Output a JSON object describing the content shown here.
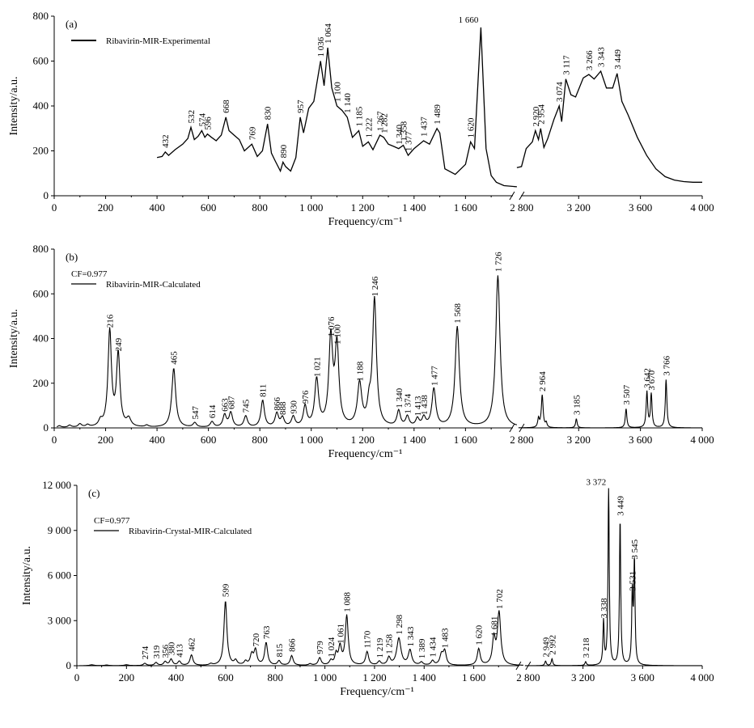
{
  "chart_data": [
    {
      "type": "line",
      "panel": "(a)",
      "legend": [
        "Ribavirin-MIR-Experimental"
      ],
      "legend_position": "top-left",
      "xlabel": "Frequency/cm⁻¹",
      "ylabel": "Intensity/a.u.",
      "ylim": [
        0,
        800
      ],
      "yticks": [
        "0",
        "200",
        "400",
        "600",
        "800"
      ],
      "xticks_left": [
        "0",
        "200",
        "400",
        "600",
        "800",
        "1 000",
        "1 200",
        "1 400",
        "1 600"
      ],
      "break_label": "2 800",
      "xticks_right": [
        "3 200",
        "3 600",
        "4 000"
      ],
      "x_axis_segments": [
        [
          0,
          1800
        ],
        [
          2800,
          4000
        ]
      ],
      "grid": false,
      "series": [
        {
          "x": [
            400,
            420,
            432,
            445,
            470,
            500,
            520,
            532,
            545,
            560,
            574,
            586,
            596,
            610,
            630,
            650,
            668,
            680,
            700,
            720,
            740,
            769,
            790,
            810,
            830,
            845,
            860,
            880,
            890,
            900,
            920,
            940,
            957,
            970,
            990,
            1010,
            1036,
            1050,
            1064,
            1080,
            1100,
            1120,
            1140,
            1160,
            1185,
            1200,
            1222,
            1240,
            1267,
            1282,
            1300,
            1320,
            1340,
            1358,
            1377,
            1400,
            1437,
            1460,
            1489,
            1500,
            1520,
            1560,
            1600,
            1620,
            1635,
            1660,
            1680,
            1700,
            1720,
            1750,
            1800
          ],
          "y": [
            170,
            175,
            195,
            180,
            205,
            230,
            255,
            305,
            250,
            265,
            290,
            260,
            275,
            262,
            245,
            270,
            350,
            290,
            270,
            250,
            200,
            230,
            175,
            200,
            320,
            190,
            155,
            110,
            150,
            130,
            110,
            170,
            350,
            280,
            390,
            420,
            600,
            490,
            660,
            480,
            400,
            380,
            350,
            260,
            290,
            220,
            240,
            205,
            270,
            260,
            230,
            220,
            210,
            225,
            180,
            210,
            245,
            230,
            300,
            280,
            120,
            95,
            140,
            240,
            210,
            750,
            210,
            90,
            60,
            45,
            40
          ]
        },
        {
          "x": [
            2800,
            2830,
            2860,
            2900,
            2920,
            2940,
            2954,
            2975,
            3000,
            3040,
            3074,
            3090,
            3117,
            3150,
            3180,
            3230,
            3266,
            3300,
            3343,
            3380,
            3420,
            3449,
            3480,
            3520,
            3580,
            3640,
            3700,
            3760,
            3820,
            3880,
            3940,
            4000
          ],
          "y": [
            125,
            130,
            210,
            240,
            290,
            250,
            300,
            215,
            255,
            340,
            400,
            330,
            520,
            450,
            440,
            525,
            540,
            520,
            555,
            480,
            480,
            545,
            420,
            360,
            260,
            180,
            120,
            85,
            70,
            63,
            60,
            60
          ]
        }
      ],
      "annotations": [
        "432",
        "532",
        "574",
        "596",
        "668",
        "769",
        "830",
        "890",
        "957",
        "1 036",
        "1 064",
        "1 100",
        "1 140",
        "1 185",
        "1 222",
        "1 267",
        "1 282",
        "1 340",
        "1 358",
        "1 377",
        "1 437",
        "1 489",
        "1 620",
        "1 660",
        "2 920",
        "2 954",
        "3 074",
        "3 117",
        "3 266",
        "3 343",
        "3 449"
      ],
      "annotation_x": [
        432,
        532,
        574,
        596,
        668,
        769,
        830,
        890,
        957,
        1036,
        1064,
        1100,
        1140,
        1185,
        1222,
        1267,
        1282,
        1340,
        1358,
        1377,
        1437,
        1489,
        1620,
        1660,
        2920,
        2954,
        3074,
        3117,
        3266,
        3343,
        3449
      ],
      "annotation_y": [
        195,
        305,
        290,
        275,
        350,
        230,
        320,
        150,
        350,
        600,
        660,
        400,
        350,
        290,
        240,
        270,
        260,
        210,
        225,
        180,
        245,
        300,
        240,
        750,
        290,
        300,
        400,
        520,
        540,
        555,
        545
      ],
      "annotation_rotation": [
        -90,
        -90,
        -90,
        -90,
        -90,
        -90,
        -90,
        -90,
        -90,
        -90,
        -90,
        -90,
        -90,
        -90,
        -90,
        -90,
        -90,
        -90,
        -90,
        -90,
        -90,
        -90,
        -90,
        0,
        -90,
        -90,
        -90,
        -90,
        -90,
        -90,
        -90
      ]
    },
    {
      "type": "line",
      "panel": "(b)",
      "legend_note": "CF=0.977",
      "legend": [
        "Ribavirin-MIR-Calculated"
      ],
      "legend_position": "top-left",
      "xlabel": "Frequency/cm⁻¹",
      "ylabel": "Intensity/a.u.",
      "ylim": [
        0,
        800
      ],
      "yticks": [
        "0",
        "200",
        "400",
        "600",
        "800"
      ],
      "xticks_left": [
        "0",
        "200",
        "400",
        "600",
        "800",
        "1 000",
        "1 200",
        "1 400",
        "1 600"
      ],
      "break_label": "2 800",
      "xticks_right": [
        "3 200",
        "3 600",
        "4 000"
      ],
      "x_axis_segments": [
        [
          0,
          1800
        ],
        [
          2800,
          4000
        ]
      ],
      "grid": false,
      "peaks": [
        {
          "x": 20,
          "y": 8,
          "w": 8
        },
        {
          "x": 60,
          "y": 10,
          "w": 8
        },
        {
          "x": 100,
          "y": 15,
          "w": 8
        },
        {
          "x": 130,
          "y": 10,
          "w": 8
        },
        {
          "x": 180,
          "y": 25,
          "w": 8
        },
        {
          "x": 216,
          "y": 430,
          "w": 8
        },
        {
          "x": 249,
          "y": 325,
          "w": 8
        },
        {
          "x": 290,
          "y": 35,
          "w": 10
        },
        {
          "x": 360,
          "y": 8,
          "w": 8
        },
        {
          "x": 465,
          "y": 265,
          "w": 9
        },
        {
          "x": 547,
          "y": 20,
          "w": 8
        },
        {
          "x": 614,
          "y": 25,
          "w": 8
        },
        {
          "x": 663,
          "y": 55,
          "w": 8
        },
        {
          "x": 687,
          "y": 65,
          "w": 8
        },
        {
          "x": 745,
          "y": 50,
          "w": 8
        },
        {
          "x": 811,
          "y": 120,
          "w": 8
        },
        {
          "x": 866,
          "y": 60,
          "w": 8
        },
        {
          "x": 888,
          "y": 40,
          "w": 8
        },
        {
          "x": 930,
          "y": 45,
          "w": 8
        },
        {
          "x": 976,
          "y": 90,
          "w": 8
        },
        {
          "x": 1021,
          "y": 210,
          "w": 9
        },
        {
          "x": 1076,
          "y": 390,
          "w": 9
        },
        {
          "x": 1100,
          "y": 355,
          "w": 9
        },
        {
          "x": 1188,
          "y": 190,
          "w": 10
        },
        {
          "x": 1225,
          "y": 80,
          "w": 8
        },
        {
          "x": 1246,
          "y": 570,
          "w": 9
        },
        {
          "x": 1340,
          "y": 70,
          "w": 8
        },
        {
          "x": 1374,
          "y": 45,
          "w": 8
        },
        {
          "x": 1413,
          "y": 35,
          "w": 8
        },
        {
          "x": 1438,
          "y": 40,
          "w": 8
        },
        {
          "x": 1477,
          "y": 170,
          "w": 9
        },
        {
          "x": 1568,
          "y": 450,
          "w": 10
        },
        {
          "x": 1726,
          "y": 680,
          "w": 10
        },
        {
          "x": 2940,
          "y": 40,
          "w": 6
        },
        {
          "x": 2964,
          "y": 145,
          "w": 7
        },
        {
          "x": 2990,
          "y": 20,
          "w": 6
        },
        {
          "x": 3185,
          "y": 40,
          "w": 6
        },
        {
          "x": 3507,
          "y": 85,
          "w": 6
        },
        {
          "x": 3642,
          "y": 160,
          "w": 6
        },
        {
          "x": 3670,
          "y": 150,
          "w": 6
        },
        {
          "x": 3766,
          "y": 215,
          "w": 6
        }
      ],
      "annotations": [
        "216",
        "249",
        "465",
        "547",
        "614",
        "663",
        "687",
        "745",
        "811",
        "866",
        "888",
        "930",
        "976",
        "1 021",
        "1 076",
        "1 100",
        "1 188",
        "1 246",
        "1 340",
        "1 374",
        "1 413",
        "1 438",
        "1 477",
        "1 568",
        "1 726",
        "2 964",
        "3 185",
        "3 507",
        "3 642",
        "3 670",
        "3 766"
      ],
      "annotation_x": [
        216,
        249,
        465,
        547,
        614,
        663,
        687,
        745,
        811,
        866,
        888,
        930,
        976,
        1021,
        1076,
        1100,
        1188,
        1246,
        1340,
        1374,
        1413,
        1438,
        1477,
        1568,
        1726,
        2964,
        3185,
        3507,
        3642,
        3670,
        3766
      ],
      "annotation_y": [
        430,
        325,
        265,
        20,
        25,
        55,
        65,
        50,
        120,
        60,
        40,
        45,
        90,
        210,
        390,
        355,
        190,
        570,
        70,
        45,
        35,
        40,
        170,
        450,
        680,
        145,
        40,
        85,
        160,
        150,
        215
      ]
    },
    {
      "type": "line",
      "panel": "(c)",
      "legend_note": "CF=0.977",
      "legend": [
        "Ribavirin-Crystal-MIR-Calculated"
      ],
      "legend_position": "top-left",
      "xlabel": "Frequency/cm⁻¹",
      "ylabel": "Intensity/a.u.",
      "ylim": [
        0,
        12000
      ],
      "yticks": [
        "0",
        "3 000",
        "6 000",
        "9 000",
        "12 000"
      ],
      "xticks_left": [
        "0",
        "200",
        "400",
        "600",
        "800",
        "1 000",
        "1 200",
        "1 400",
        "1 600"
      ],
      "break_label": "2 800",
      "xticks_right": [
        "3 200",
        "3 600",
        "4 000"
      ],
      "x_axis_segments": [
        [
          0,
          1800
        ],
        [
          2800,
          4000
        ]
      ],
      "grid": false,
      "peaks": [
        {
          "x": 60,
          "y": 60,
          "w": 10
        },
        {
          "x": 120,
          "y": 40,
          "w": 10
        },
        {
          "x": 200,
          "y": 60,
          "w": 10
        },
        {
          "x": 274,
          "y": 150,
          "w": 7
        },
        {
          "x": 319,
          "y": 200,
          "w": 7
        },
        {
          "x": 356,
          "y": 250,
          "w": 7
        },
        {
          "x": 380,
          "y": 420,
          "w": 7
        },
        {
          "x": 413,
          "y": 280,
          "w": 7
        },
        {
          "x": 462,
          "y": 700,
          "w": 7
        },
        {
          "x": 540,
          "y": 100,
          "w": 7
        },
        {
          "x": 599,
          "y": 4300,
          "w": 7
        },
        {
          "x": 640,
          "y": 300,
          "w": 7
        },
        {
          "x": 680,
          "y": 250,
          "w": 7
        },
        {
          "x": 705,
          "y": 700,
          "w": 7
        },
        {
          "x": 720,
          "y": 1000,
          "w": 7
        },
        {
          "x": 763,
          "y": 1500,
          "w": 7
        },
        {
          "x": 815,
          "y": 300,
          "w": 7
        },
        {
          "x": 866,
          "y": 650,
          "w": 7
        },
        {
          "x": 940,
          "y": 100,
          "w": 7
        },
        {
          "x": 979,
          "y": 500,
          "w": 7
        },
        {
          "x": 1024,
          "y": 300,
          "w": 7
        },
        {
          "x": 1045,
          "y": 700,
          "w": 6
        },
        {
          "x": 1061,
          "y": 1200,
          "w": 7
        },
        {
          "x": 1088,
          "y": 3300,
          "w": 7
        },
        {
          "x": 1170,
          "y": 900,
          "w": 7
        },
        {
          "x": 1219,
          "y": 250,
          "w": 7
        },
        {
          "x": 1258,
          "y": 500,
          "w": 7
        },
        {
          "x": 1298,
          "y": 1800,
          "w": 10
        },
        {
          "x": 1343,
          "y": 1000,
          "w": 8
        },
        {
          "x": 1389,
          "y": 200,
          "w": 7
        },
        {
          "x": 1434,
          "y": 300,
          "w": 7
        },
        {
          "x": 1470,
          "y": 700,
          "w": 8
        },
        {
          "x": 1483,
          "y": 900,
          "w": 7
        },
        {
          "x": 1620,
          "y": 1100,
          "w": 7
        },
        {
          "x": 1681,
          "y": 1700,
          "w": 7
        },
        {
          "x": 1702,
          "y": 3500,
          "w": 8
        },
        {
          "x": 2949,
          "y": 300,
          "w": 6
        },
        {
          "x": 2992,
          "y": 450,
          "w": 6
        },
        {
          "x": 3218,
          "y": 250,
          "w": 6
        },
        {
          "x": 3338,
          "y": 2900,
          "w": 5
        },
        {
          "x": 3372,
          "y": 11700,
          "w": 5
        },
        {
          "x": 3449,
          "y": 9700,
          "w": 5
        },
        {
          "x": 3531,
          "y": 4700,
          "w": 5
        },
        {
          "x": 3545,
          "y": 6800,
          "w": 5
        }
      ],
      "annotations": [
        "274",
        "319",
        "356",
        "380",
        "413",
        "462",
        "599",
        "720",
        "763",
        "815",
        "866",
        "979",
        "1 024",
        "1 061",
        "1 088",
        "1170",
        "1 219",
        "1 258",
        "1 298",
        "1 343",
        "1 389",
        "1 434",
        "1 483",
        "1 620",
        "1 681",
        "1 702",
        "2 949",
        "2 992",
        "3 218",
        "3 338",
        "3 372",
        "3 449",
        "3 531",
        "3 545"
      ],
      "annotation_x": [
        274,
        319,
        356,
        380,
        413,
        462,
        599,
        720,
        763,
        815,
        866,
        979,
        1024,
        1061,
        1088,
        1170,
        1219,
        1258,
        1298,
        1343,
        1389,
        1434,
        1483,
        1620,
        1681,
        1702,
        2949,
        2992,
        3218,
        3338,
        3372,
        3449,
        3531,
        3545
      ],
      "annotation_y": [
        150,
        200,
        250,
        420,
        280,
        700,
        4300,
        1000,
        1500,
        300,
        650,
        500,
        300,
        1200,
        3300,
        900,
        250,
        500,
        1800,
        1000,
        200,
        300,
        900,
        1100,
        1700,
        3500,
        300,
        450,
        250,
        2900,
        11700,
        9700,
        4700,
        6800
      ],
      "annotation_rotation": [
        -90,
        -90,
        -90,
        -90,
        -90,
        -90,
        -90,
        -90,
        -90,
        -90,
        -90,
        -90,
        -90,
        -90,
        -90,
        -90,
        -90,
        -90,
        -90,
        -90,
        -90,
        -90,
        -90,
        -90,
        -90,
        -90,
        -90,
        -90,
        -90,
        -90,
        0,
        -90,
        -90,
        -90
      ]
    }
  ]
}
